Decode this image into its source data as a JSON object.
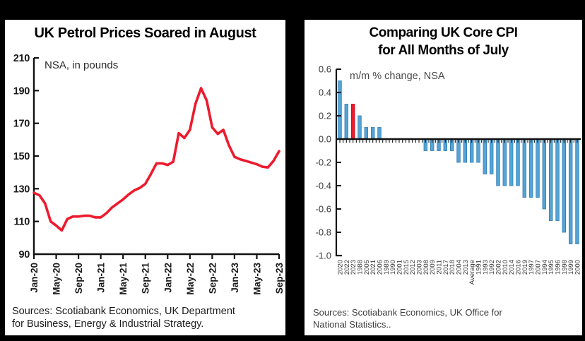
{
  "frame": {
    "background": "#000000"
  },
  "left_panel": {
    "title": "UK Petrol Prices Soared in August",
    "annotation": "NSA, in pounds",
    "sources": "Sources: Scotiabank Economics, UK Department\nfor Business, Energy & Industrial Strategy."
  },
  "right_panel": {
    "title_line1": "Comparing UK Core CPI",
    "title_line2": "for All Months of July",
    "annotation": "m/m % change, NSA",
    "sources": "Sources: Scotiabank Economics, UK Office for\nNational Statistics.."
  },
  "chart_data": [
    {
      "type": "line",
      "title": "UK Petrol Prices Soared in August",
      "annotation": "NSA, in pounds",
      "ylim": [
        90,
        210
      ],
      "yticks": [
        210,
        190,
        170,
        150,
        130,
        110,
        90
      ],
      "grid": false,
      "legend": null,
      "line_color": "#ED1B2D",
      "axis_color": "#111111",
      "xtick_labels": [
        "Jan-20",
        "May-20",
        "Sep-20",
        "Jan-21",
        "May-21",
        "Sep-21",
        "Jan-22",
        "May-22",
        "Sep-22",
        "Jan-23",
        "May-23",
        "Sep-23"
      ],
      "xtick_indices": [
        0,
        4,
        8,
        12,
        16,
        20,
        24,
        28,
        32,
        36,
        40,
        44
      ],
      "x": [
        "Jan-20",
        "Feb-20",
        "Mar-20",
        "Apr-20",
        "May-20",
        "Jun-20",
        "Jul-20",
        "Aug-20",
        "Sep-20",
        "Oct-20",
        "Nov-20",
        "Dec-20",
        "Jan-21",
        "Feb-21",
        "Mar-21",
        "Apr-21",
        "May-21",
        "Jun-21",
        "Jul-21",
        "Aug-21",
        "Sep-21",
        "Oct-21",
        "Nov-21",
        "Dec-21",
        "Jan-22",
        "Feb-22",
        "Mar-22",
        "Apr-22",
        "May-22",
        "Jun-22",
        "Jul-22",
        "Aug-22",
        "Sep-22",
        "Oct-22",
        "Nov-22",
        "Dec-22",
        "Jan-23",
        "Feb-23",
        "Mar-23",
        "Apr-23",
        "May-23",
        "Jun-23",
        "Jul-23",
        "Aug-23",
        "Sep-23"
      ],
      "values": [
        127.5,
        126,
        121,
        110,
        107.5,
        104.5,
        111.5,
        113,
        113,
        113.5,
        113.5,
        112.5,
        112.5,
        115,
        118.5,
        121,
        123.5,
        126.5,
        129,
        130.5,
        133,
        139,
        145.5,
        145.5,
        144.5,
        146.5,
        164,
        161,
        166,
        182,
        191.5,
        184,
        167.5,
        163.5,
        166,
        156.5,
        149.5,
        148,
        147,
        146,
        145,
        143.5,
        143,
        147,
        153
      ]
    },
    {
      "type": "bar",
      "title": "Comparing UK Core CPI for All Months of July",
      "annotation": "m/m % change, NSA",
      "ylim": [
        -1.0,
        0.6
      ],
      "yticks": [
        0.6,
        0.4,
        0.2,
        0.0,
        -0.2,
        -0.4,
        -0.6,
        -0.8,
        -1.0
      ],
      "grid": false,
      "bar_color": "#54A4D6",
      "bar_edge_color": "#2F7CB5",
      "highlight_index": 2,
      "highlight_color": "#ED1B2D",
      "highlight_edge_color": "#C00E1F",
      "axis_color": "#111111",
      "categories": [
        "2020",
        "2022",
        "2023",
        "1988",
        "2005",
        "2021",
        "2006",
        "1989",
        "1990",
        "2001",
        "2015",
        "2012",
        "2003",
        "2008",
        "2009",
        "2011",
        "2017",
        "2018",
        "2004",
        "2013",
        "Average",
        "1991",
        "1993",
        "1992",
        "2002",
        "2010",
        "2014",
        "2016",
        "2019",
        "1997",
        "2007",
        "1994",
        "1995",
        "1996",
        "1998",
        "1999",
        "2000"
      ],
      "values": [
        0.5,
        0.3,
        0.3,
        0.2,
        0.1,
        0.1,
        0.1,
        0.0,
        0.0,
        0.0,
        0.0,
        0.0,
        0.0,
        -0.1,
        -0.1,
        -0.1,
        -0.1,
        -0.1,
        -0.2,
        -0.2,
        -0.2,
        -0.2,
        -0.3,
        -0.3,
        -0.4,
        -0.4,
        -0.4,
        -0.4,
        -0.5,
        -0.5,
        -0.5,
        -0.6,
        -0.7,
        -0.7,
        -0.8,
        -0.9,
        -0.9
      ]
    }
  ]
}
